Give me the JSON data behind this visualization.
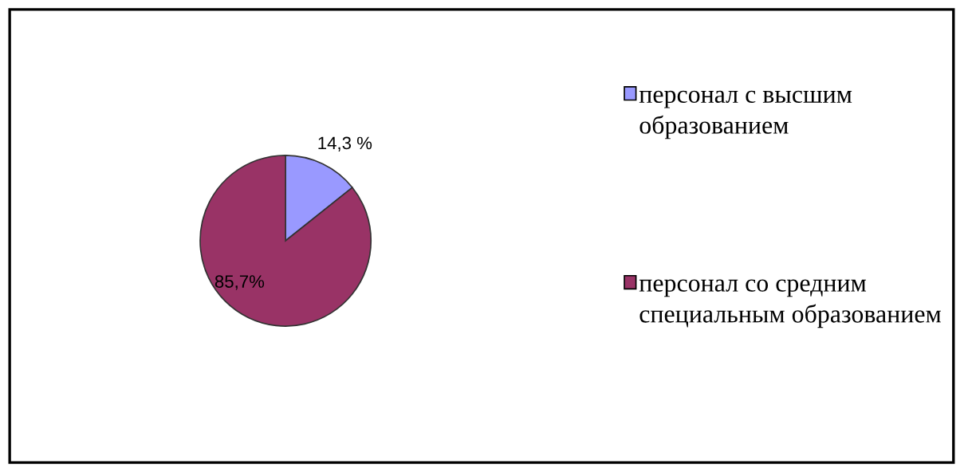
{
  "chart_data": {
    "type": "pie",
    "categories": [
      "персонал с высшим образованием",
      "персонал со средним специальным образованием"
    ],
    "values": [
      14.3,
      85.7
    ],
    "colors": [
      "#9999ff",
      "#993366"
    ],
    "value_labels": [
      "14,3 %",
      "85,7%"
    ],
    "legend": "right"
  }
}
